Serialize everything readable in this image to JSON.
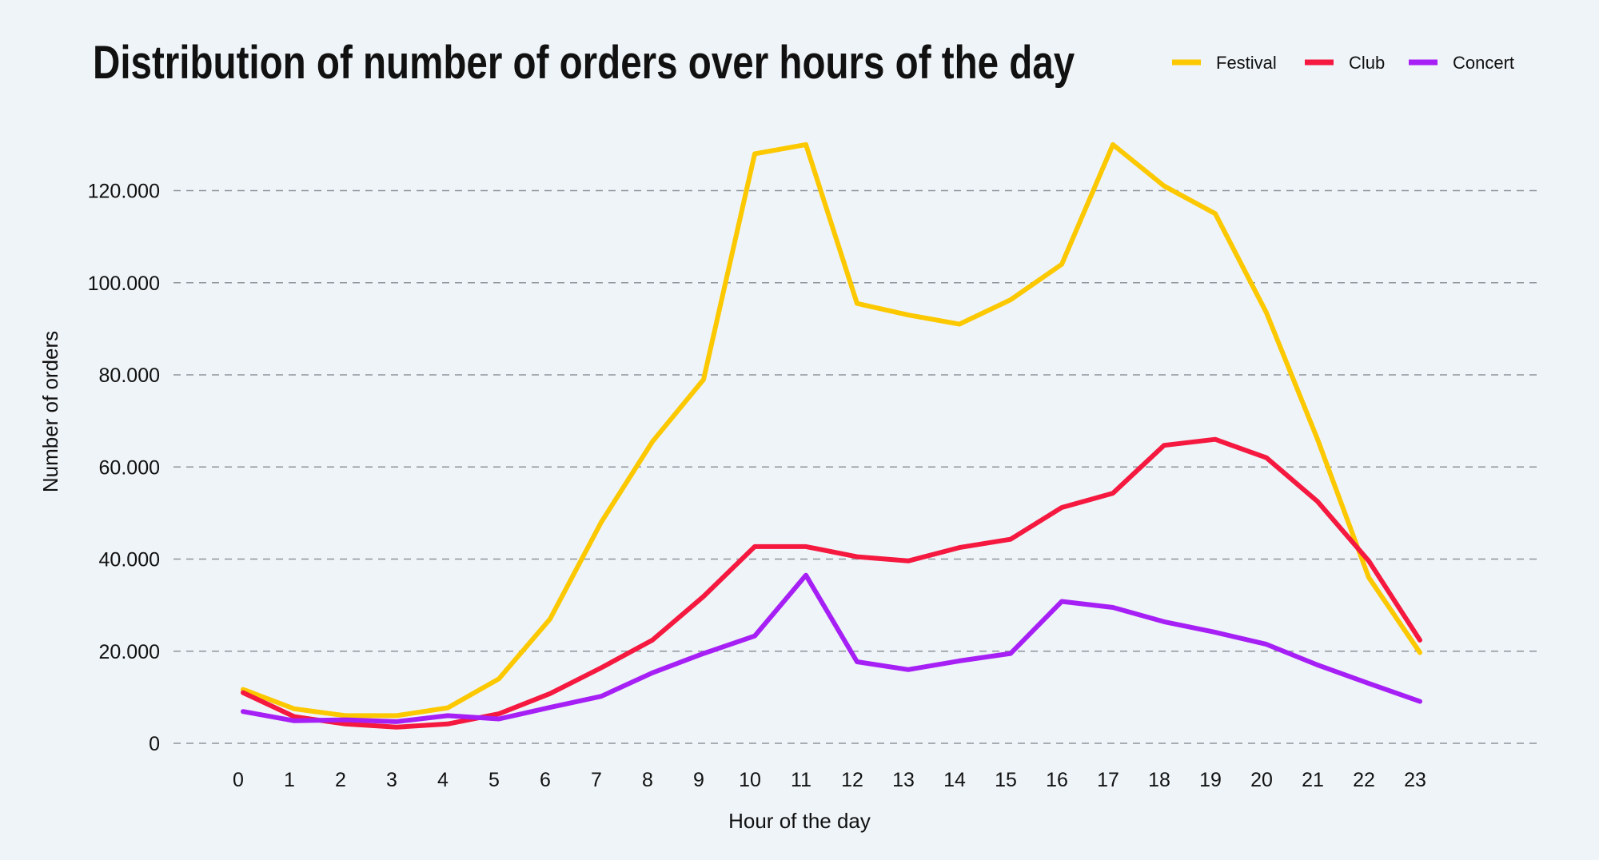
{
  "chart_data": {
    "type": "line",
    "title": "Distribution of number of orders over hours of the day",
    "xlabel": "Hour of the day",
    "ylabel": "Number of orders",
    "x": [
      0,
      1,
      2,
      3,
      4,
      5,
      6,
      7,
      8,
      9,
      10,
      11,
      12,
      13,
      14,
      15,
      16,
      17,
      18,
      19,
      20,
      21,
      22,
      23
    ],
    "x_tick_labels": [
      "0",
      "1",
      "2",
      "3",
      "4",
      "5",
      "6",
      "7",
      "8",
      "9",
      "10",
      "11",
      "12",
      "13",
      "14",
      "15",
      "16",
      "17",
      "18",
      "19",
      "20",
      "21",
      "22",
      "23"
    ],
    "y_ticks": [
      0,
      20000,
      40000,
      60000,
      80000,
      100000,
      120000
    ],
    "y_tick_labels": [
      "0",
      "20.000",
      "40.000",
      "60.000",
      "80.000",
      "100.000",
      "120.000"
    ],
    "ylim": [
      0,
      130000
    ],
    "grid": "horizontal dashed",
    "legend_position": "top-right",
    "series": [
      {
        "name": "Festival",
        "color": "#fcc800",
        "values": [
          11700,
          7500,
          6000,
          6000,
          7700,
          14000,
          27000,
          48000,
          65500,
          79000,
          128000,
          130000,
          95500,
          93000,
          91000,
          96300,
          104000,
          130000,
          121000,
          115000,
          93500,
          66000,
          36000,
          19700
        ]
      },
      {
        "name": "Club",
        "color": "#f5183f",
        "values": [
          11000,
          5800,
          4200,
          3500,
          4200,
          6400,
          10800,
          16400,
          22400,
          31900,
          42700,
          42700,
          40500,
          39600,
          42500,
          44300,
          51200,
          54300,
          64700,
          66000,
          62000,
          52500,
          39600,
          22400
        ]
      },
      {
        "name": "Concert",
        "color": "#a620f5",
        "values": [
          6900,
          4900,
          5100,
          4700,
          6000,
          5300,
          7800,
          10200,
          15300,
          19500,
          23300,
          36500,
          17700,
          16000,
          17900,
          19500,
          30800,
          29500,
          26400,
          24100,
          21500,
          17000,
          13000,
          9100
        ]
      }
    ]
  }
}
